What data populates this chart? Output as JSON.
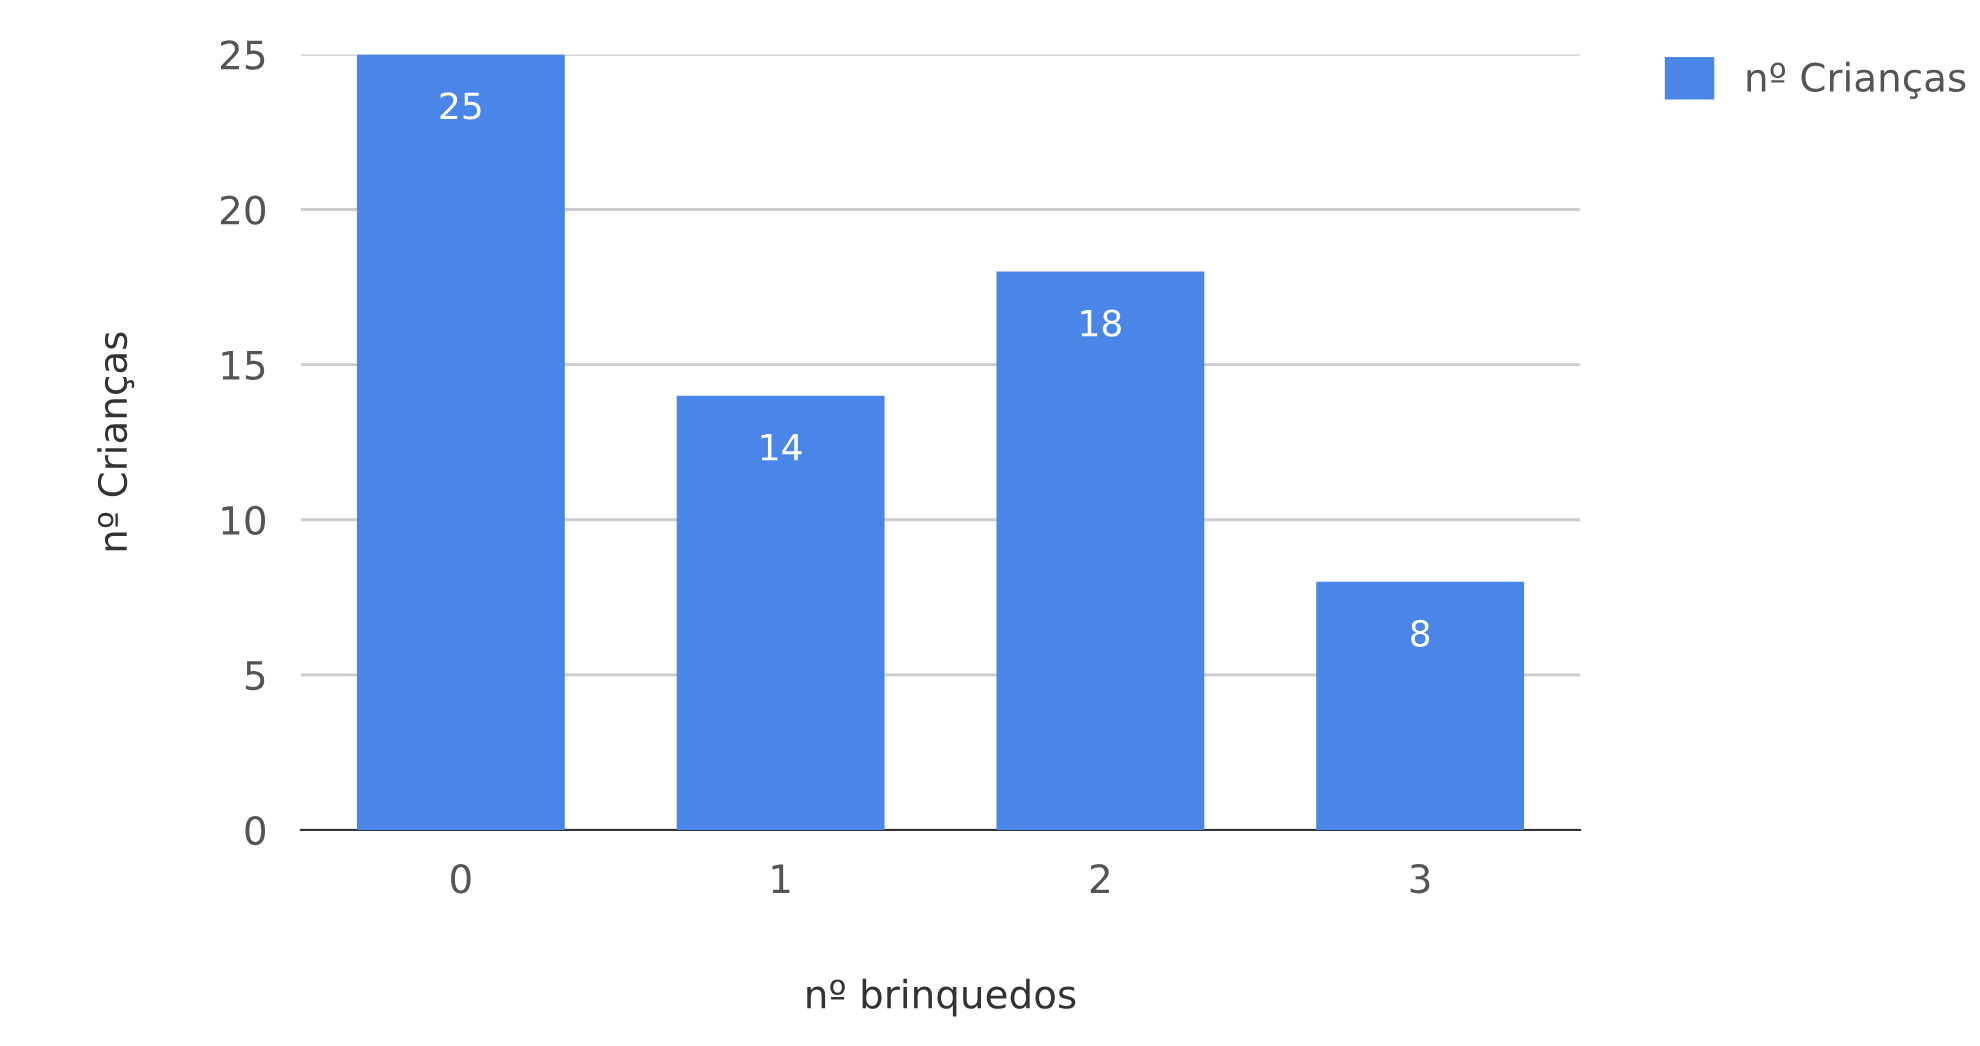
{
  "chart_data": {
    "type": "bar",
    "xlabel": "nº brinquedos",
    "ylabel": "nº Crianças",
    "categories": [
      "0",
      "1",
      "2",
      "3"
    ],
    "series": [
      {
        "name": "nº Crianças",
        "color": "#4a86e8",
        "values": [
          25,
          14,
          18,
          8
        ]
      }
    ],
    "ylim": [
      0,
      25
    ],
    "yticks": [
      0,
      5,
      10,
      15,
      20,
      25
    ],
    "grid": "y",
    "legend": "top right",
    "data_labels": true
  }
}
